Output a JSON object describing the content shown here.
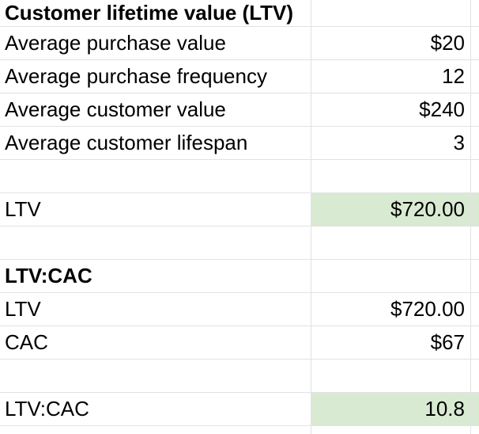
{
  "app": "spreadsheet",
  "colors": {
    "highlight_green": "#d9ead3",
    "gridline": "#e2e2e2",
    "text": "#000000",
    "background": "#ffffff"
  },
  "table": {
    "rows": [
      {
        "label": "Customer lifetime value (LTV)",
        "value": ""
      },
      {
        "label": "Average purchase value",
        "value": "$20"
      },
      {
        "label": "Average purchase frequency",
        "value": "12"
      },
      {
        "label": "Average customer value",
        "value": "$240"
      },
      {
        "label": "Average customer lifespan",
        "value": "3"
      },
      {
        "label": "",
        "value": ""
      },
      {
        "label": "LTV",
        "value": "$720.00"
      },
      {
        "label": "",
        "value": ""
      },
      {
        "label": "LTV:CAC",
        "value": ""
      },
      {
        "label": "LTV",
        "value": "$720.00"
      },
      {
        "label": "CAC",
        "value": "$67"
      },
      {
        "label": "",
        "value": ""
      },
      {
        "label": "LTV:CAC",
        "value": "10.8"
      },
      {
        "label": "",
        "value": ""
      }
    ]
  }
}
